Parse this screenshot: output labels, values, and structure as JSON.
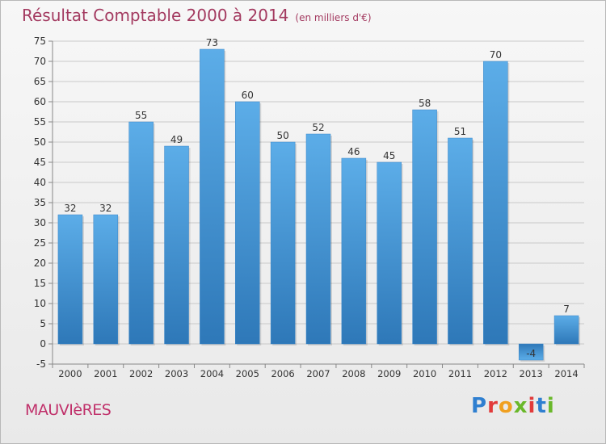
{
  "header": {
    "title": "Résultat Comptable 2000 à 2014",
    "subtitle": "(en milliers d'€)"
  },
  "footer": {
    "town": "MAUVIèRES",
    "logo": {
      "letters": [
        "P",
        "r",
        "o",
        "x",
        "i",
        "t",
        "i"
      ],
      "colors": [
        "#2f7fd0",
        "#e23a3a",
        "#f0a020",
        "#6ab82a",
        "#e23a3a",
        "#2f7fd0",
        "#6ab82a"
      ]
    }
  },
  "chart_data": {
    "type": "bar",
    "categories": [
      "2000",
      "2001",
      "2002",
      "2003",
      "2004",
      "2005",
      "2006",
      "2007",
      "2008",
      "2009",
      "2010",
      "2011",
      "2012",
      "2013",
      "2014"
    ],
    "values": [
      32,
      32,
      55,
      49,
      73,
      60,
      50,
      52,
      46,
      45,
      58,
      51,
      70,
      -4,
      7
    ],
    "ylim": [
      -5,
      75
    ],
    "yticks": [
      -5,
      0,
      5,
      10,
      15,
      20,
      25,
      30,
      35,
      40,
      45,
      50,
      55,
      60,
      65,
      70,
      75
    ],
    "grid": true,
    "colors": {
      "bar_light": "#5cade8",
      "bar_dark": "#2e78b8",
      "grid": "#c9c9c9",
      "text": "#333333"
    }
  }
}
